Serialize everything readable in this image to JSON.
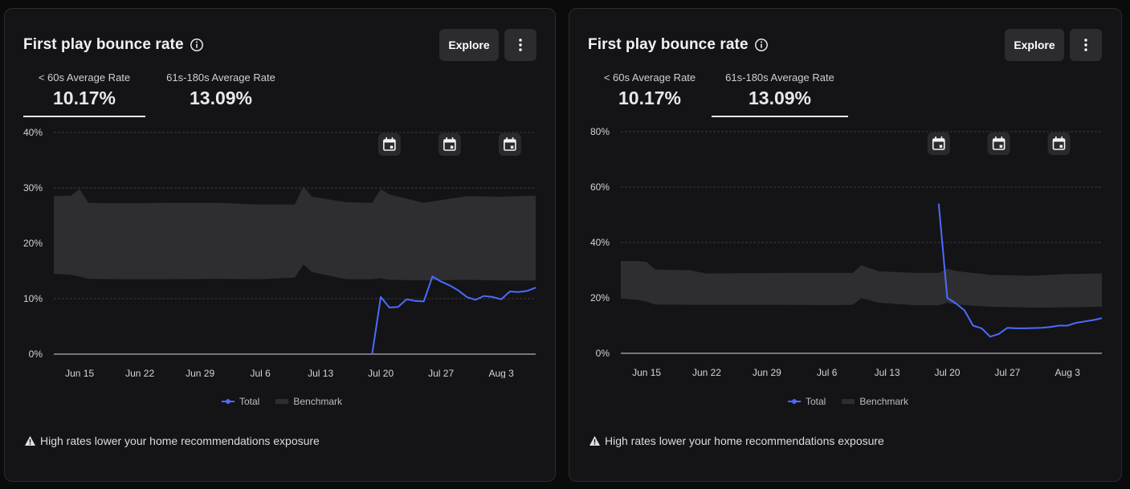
{
  "colors": {
    "total_line": "#4b6bff",
    "benchmark_band": "#2e2e31",
    "grid": "#3a3a3e",
    "tick_text": "#d4d4d8"
  },
  "cards": [
    {
      "title": "First play bounce rate",
      "explore_label": "Explore",
      "tabs": [
        {
          "label": "< 60s Average Rate",
          "value": "10.17%",
          "selected": true
        },
        {
          "label": "61s-180s Average Rate",
          "value": "13.09%",
          "selected": false
        }
      ],
      "legend": [
        {
          "label": "Total"
        },
        {
          "label": "Benchmark"
        }
      ],
      "footnote": "High rates lower your home recommendations exposure"
    },
    {
      "title": "First play bounce rate",
      "explore_label": "Explore",
      "tabs": [
        {
          "label": "< 60s Average Rate",
          "value": "10.17%",
          "selected": false
        },
        {
          "label": "61s-180s Average Rate",
          "value": "13.09%",
          "selected": true
        }
      ],
      "legend": [
        {
          "label": "Total"
        },
        {
          "label": "Benchmark"
        }
      ],
      "footnote": "High rates lower your home recommendations exposure"
    }
  ],
  "chart_data": [
    {
      "type": "line",
      "title": "First play bounce rate",
      "x_start": "Jun 12",
      "x_end": "Aug 7",
      "x_ticks": [
        "Jun 15",
        "Jun 22",
        "Jun 29",
        "Jul 6",
        "Jul 13",
        "Jul 20",
        "Jul 27",
        "Aug 3"
      ],
      "x_tick_dates": [
        "Jun 15",
        "Jun 22",
        "Jun 29",
        "Jul 6",
        "Jul 13",
        "Jul 20",
        "Jul 27",
        "Aug 3"
      ],
      "ylim": [
        0,
        40
      ],
      "y_ticks": [
        0,
        10,
        20,
        30,
        40
      ],
      "y_tick_labels": [
        "0%",
        "10%",
        "20%",
        "30%",
        "40%"
      ],
      "y_unit": "%",
      "grid": true,
      "legend_position": "bottom",
      "event_markers": [
        "Jul 21",
        "Jul 28",
        "Aug 4"
      ],
      "series": [
        {
          "name": "Total",
          "points": [
            [
              "Jul 19",
              0
            ],
            [
              "Jul 20",
              10.3
            ],
            [
              "Jul 21",
              8.4
            ],
            [
              "Jul 22",
              8.5
            ],
            [
              "Jul 23",
              9.9
            ],
            [
              "Jul 24",
              9.6
            ],
            [
              "Jul 25",
              9.5
            ],
            [
              "Jul 26",
              14.0
            ],
            [
              "Jul 27",
              13.1
            ],
            [
              "Jul 28",
              12.4
            ],
            [
              "Jul 29",
              11.5
            ],
            [
              "Jul 30",
              10.3
            ],
            [
              "Jul 31",
              9.8
            ],
            [
              "Aug 1",
              10.5
            ],
            [
              "Aug 2",
              10.3
            ],
            [
              "Aug 3",
              9.9
            ],
            [
              "Aug 4",
              11.3
            ],
            [
              "Aug 5",
              11.2
            ],
            [
              "Aug 6",
              11.4
            ],
            [
              "Aug 7",
              12.0
            ]
          ]
        },
        {
          "name": "Benchmark",
          "band": [
            [
              "Jun 12",
              14.5,
              28.5
            ],
            [
              "Jun 14",
              14.3,
              28.6
            ],
            [
              "Jun 15",
              14.0,
              29.8
            ],
            [
              "Jun 16",
              13.6,
              27.3
            ],
            [
              "Jun 20",
              13.5,
              27.2
            ],
            [
              "Jun 25",
              13.5,
              27.3
            ],
            [
              "Jul 1",
              13.6,
              27.3
            ],
            [
              "Jul 6",
              13.5,
              27.0
            ],
            [
              "Jul 10",
              13.8,
              27.0
            ],
            [
              "Jul 11",
              16.2,
              30.3
            ],
            [
              "Jul 12",
              14.8,
              28.4
            ],
            [
              "Jul 16",
              13.5,
              27.4
            ],
            [
              "Jul 19",
              13.5,
              27.3
            ],
            [
              "Jul 20",
              13.7,
              29.8
            ],
            [
              "Jul 21",
              13.4,
              28.8
            ],
            [
              "Jul 25",
              13.3,
              27.3
            ],
            [
              "Jul 30",
              13.4,
              28.5
            ],
            [
              "Aug 3",
              13.3,
              28.4
            ],
            [
              "Aug 7",
              13.3,
              28.6
            ]
          ]
        }
      ]
    },
    {
      "type": "line",
      "title": "First play bounce rate",
      "x_start": "Jun 12",
      "x_end": "Aug 7",
      "x_ticks": [
        "Jun 15",
        "Jun 22",
        "Jun 29",
        "Jul 6",
        "Jul 13",
        "Jul 20",
        "Jul 27",
        "Aug 3"
      ],
      "x_tick_dates": [
        "Jun 15",
        "Jun 22",
        "Jun 29",
        "Jul 6",
        "Jul 13",
        "Jul 20",
        "Jul 27",
        "Aug 3"
      ],
      "ylim": [
        0,
        80
      ],
      "y_ticks": [
        0,
        20,
        40,
        60,
        80
      ],
      "y_tick_labels": [
        "0%",
        "20%",
        "40%",
        "60%",
        "80%"
      ],
      "y_unit": "%",
      "grid": true,
      "legend_position": "bottom",
      "event_markers": [
        "Jul 19",
        "Jul 26",
        "Aug 2"
      ],
      "series": [
        {
          "name": "Total",
          "points": [
            [
              "Jul 19",
              54.0
            ],
            [
              "Jul 20",
              20.0
            ],
            [
              "Jul 21",
              18.0
            ],
            [
              "Jul 22",
              15.5
            ],
            [
              "Jul 23",
              10.0
            ],
            [
              "Jul 24",
              9.0
            ],
            [
              "Jul 25",
              6.0
            ],
            [
              "Jul 26",
              7.0
            ],
            [
              "Jul 27",
              9.2
            ],
            [
              "Jul 28",
              9.0
            ],
            [
              "Jul 29",
              9.0
            ],
            [
              "Jul 31",
              9.2
            ],
            [
              "Aug 1",
              9.5
            ],
            [
              "Aug 2",
              10.0
            ],
            [
              "Aug 3",
              10.0
            ],
            [
              "Aug 4",
              11.0
            ],
            [
              "Aug 5",
              11.5
            ],
            [
              "Aug 6",
              12.0
            ],
            [
              "Aug 7",
              12.7
            ]
          ]
        },
        {
          "name": "Benchmark",
          "band": [
            [
              "Jun 12",
              19.8,
              33.3
            ],
            [
              "Jun 14",
              19.3,
              33.3
            ],
            [
              "Jun 15",
              18.6,
              33.0
            ],
            [
              "Jun 16",
              17.6,
              30.2
            ],
            [
              "Jun 20",
              17.5,
              30.0
            ],
            [
              "Jun 22",
              17.5,
              28.8
            ],
            [
              "Jul 1",
              17.5,
              29.0
            ],
            [
              "Jul 7",
              17.4,
              29.0
            ],
            [
              "Jul 9",
              17.5,
              29.0
            ],
            [
              "Jul 10",
              19.9,
              31.8
            ],
            [
              "Jul 12",
              18.3,
              29.6
            ],
            [
              "Jul 16",
              17.4,
              29.0
            ],
            [
              "Jul 19",
              17.3,
              29.0
            ],
            [
              "Jul 20",
              18.3,
              30.5
            ],
            [
              "Jul 21",
              17.6,
              29.7
            ],
            [
              "Jul 25",
              16.8,
              28.3
            ],
            [
              "Jul 30",
              16.5,
              28.0
            ],
            [
              "Aug 3",
              16.6,
              28.6
            ],
            [
              "Aug 7",
              16.8,
              28.8
            ]
          ]
        }
      ]
    }
  ]
}
